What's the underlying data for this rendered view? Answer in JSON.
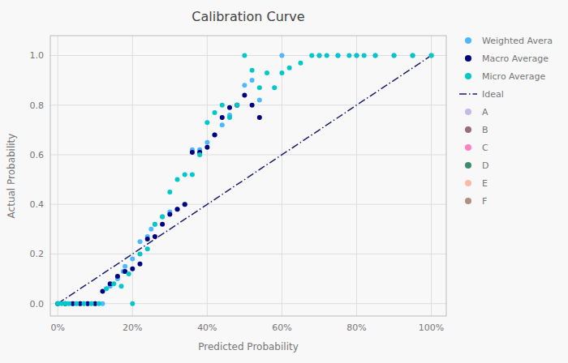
{
  "chart_data": {
    "type": "scatter",
    "title": "Calibration Curve",
    "x_label": "Predicted Probability",
    "y_label": "Actual Probability",
    "xlim": [
      -0.02,
      1.04
    ],
    "ylim": [
      -0.05,
      1.08
    ],
    "xticks": [
      {
        "value": 0,
        "label": "0%"
      },
      {
        "value": 0.2,
        "label": "20%"
      },
      {
        "value": 0.4,
        "label": "40%"
      },
      {
        "value": 0.6,
        "label": "60%"
      },
      {
        "value": 0.8,
        "label": "80%"
      },
      {
        "value": 1.0,
        "label": "100%"
      }
    ],
    "yticks": [
      {
        "value": 0,
        "label": "0.0"
      },
      0.2,
      0.4,
      0.6,
      0.8,
      {
        "value": 1.0,
        "label": "1.0"
      }
    ],
    "grid": true,
    "legend": "right",
    "series": [
      {
        "name": "Weighted Avera",
        "color": "#4db8ff",
        "marker": "circle",
        "x": [
          0.0,
          0.02,
          0.04,
          0.06,
          0.08,
          0.1,
          0.12,
          0.14,
          0.16,
          0.175,
          0.18,
          0.2,
          0.22,
          0.24,
          0.25,
          0.26,
          0.28,
          0.3,
          0.32,
          0.34,
          0.36,
          0.38,
          0.4,
          0.42,
          0.44,
          0.46,
          0.48,
          0.5,
          0.52,
          0.54,
          0.6,
          0.7,
          0.75,
          0.8,
          0.85,
          0.9,
          0.95,
          1.0
        ],
        "values": [
          0.0,
          0.0,
          0.0,
          0.0,
          0.0,
          0.0,
          0.0,
          0.07,
          0.1,
          0.13,
          0.15,
          0.18,
          0.25,
          0.27,
          0.3,
          0.32,
          0.35,
          0.37,
          0.38,
          0.4,
          0.62,
          0.62,
          0.65,
          0.68,
          0.72,
          0.76,
          0.8,
          0.88,
          0.9,
          0.82,
          1.0,
          1.0,
          1.0,
          1.0,
          1.0,
          1.0,
          1.0,
          1.0
        ]
      },
      {
        "name": "Macro Average",
        "color": "#000080",
        "marker": "circle",
        "x": [
          0.0,
          0.02,
          0.04,
          0.06,
          0.08,
          0.1,
          0.12,
          0.14,
          0.16,
          0.18,
          0.2,
          0.22,
          0.24,
          0.26,
          0.28,
          0.3,
          0.32,
          0.34,
          0.36,
          0.38,
          0.4,
          0.42,
          0.44,
          0.46,
          0.48,
          0.5,
          0.52,
          0.54
        ],
        "values": [
          0.0,
          0.0,
          0.0,
          0.0,
          0.0,
          0.0,
          0.05,
          0.08,
          0.11,
          0.13,
          0.14,
          0.16,
          0.26,
          0.27,
          0.32,
          0.36,
          0.38,
          0.4,
          0.61,
          0.61,
          0.63,
          0.68,
          0.75,
          0.79,
          0.8,
          0.84,
          0.8,
          0.75
        ]
      },
      {
        "name": "Micro Average",
        "color": "#00c8c8",
        "marker": "circle",
        "x": [
          0.0,
          0.01,
          0.02,
          0.03,
          0.05,
          0.07,
          0.09,
          0.11,
          0.13,
          0.15,
          0.17,
          0.19,
          0.2,
          0.22,
          0.24,
          0.26,
          0.28,
          0.3,
          0.32,
          0.34,
          0.36,
          0.38,
          0.4,
          0.42,
          0.44,
          0.46,
          0.48,
          0.5,
          0.52,
          0.54,
          0.56,
          0.58,
          0.6,
          0.62,
          0.65,
          0.68,
          0.7,
          0.72,
          0.75,
          0.78,
          0.8,
          0.82,
          0.85,
          0.9,
          0.95,
          1.0
        ],
        "values": [
          0.0,
          0.0,
          0.0,
          0.0,
          0.0,
          0.0,
          0.0,
          0.0,
          0.06,
          0.08,
          0.07,
          0.12,
          0.0,
          0.2,
          0.22,
          0.32,
          0.35,
          0.45,
          0.5,
          0.52,
          0.52,
          0.6,
          0.73,
          0.77,
          0.8,
          0.75,
          0.8,
          1.0,
          0.94,
          0.87,
          0.93,
          0.87,
          0.93,
          0.95,
          0.97,
          1.0,
          1.0,
          1.0,
          1.0,
          1.0,
          1.0,
          1.0,
          1.0,
          1.0,
          1.0,
          1.0
        ]
      },
      {
        "name": "Ideal",
        "type": "line",
        "line_style": "dashdot",
        "color": "#1a1a6e",
        "x": [
          0,
          1
        ],
        "values": [
          0,
          1
        ]
      },
      {
        "name": "A",
        "color": "#c8b8e8",
        "marker": "circle",
        "x": [],
        "values": []
      },
      {
        "name": "B",
        "color": "#9b6b7b",
        "marker": "circle",
        "x": [],
        "values": []
      },
      {
        "name": "C",
        "color": "#ff80c0",
        "marker": "circle",
        "x": [],
        "values": []
      },
      {
        "name": "D",
        "color": "#3d8b6d",
        "marker": "circle",
        "x": [],
        "values": []
      },
      {
        "name": "E",
        "color": "#ffb8a8",
        "marker": "circle",
        "x": [],
        "values": []
      },
      {
        "name": "F",
        "color": "#b09080",
        "marker": "circle",
        "x": [],
        "values": []
      }
    ]
  }
}
